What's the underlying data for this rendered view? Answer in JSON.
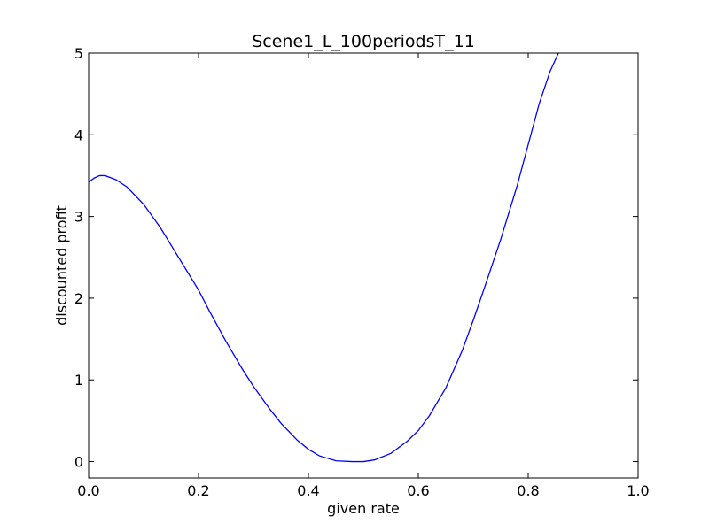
{
  "chart_data": {
    "type": "line",
    "title": "Scene1_L_100periodsT_11",
    "xlabel": "given rate",
    "ylabel": "discounted profit",
    "xlim": [
      0.0,
      1.0
    ],
    "ylim": [
      -0.2,
      5.0
    ],
    "xticks": [
      "0.0",
      "0.2",
      "0.4",
      "0.6",
      "0.8",
      "1.0"
    ],
    "yticks": [
      "0",
      "1",
      "2",
      "3",
      "4",
      "5"
    ],
    "grid": false,
    "line_color": "#0000ff",
    "series": [
      {
        "x": [
          0.0,
          0.01,
          0.02,
          0.03,
          0.05,
          0.07,
          0.1,
          0.13,
          0.15,
          0.18,
          0.2,
          0.22,
          0.25,
          0.28,
          0.3,
          0.33,
          0.35,
          0.38,
          0.4,
          0.42,
          0.45,
          0.48,
          0.5,
          0.52,
          0.55,
          0.58,
          0.6,
          0.62,
          0.65,
          0.68,
          0.7,
          0.72,
          0.75,
          0.78,
          0.8,
          0.82,
          0.84,
          0.855
        ],
        "y": [
          3.42,
          3.47,
          3.5,
          3.5,
          3.45,
          3.36,
          3.15,
          2.87,
          2.65,
          2.32,
          2.1,
          1.84,
          1.47,
          1.13,
          0.92,
          0.64,
          0.47,
          0.26,
          0.15,
          0.07,
          0.01,
          0.0,
          0.0,
          0.02,
          0.1,
          0.25,
          0.38,
          0.56,
          0.9,
          1.36,
          1.73,
          2.12,
          2.72,
          3.38,
          3.88,
          4.38,
          4.78,
          5.0
        ]
      }
    ]
  }
}
